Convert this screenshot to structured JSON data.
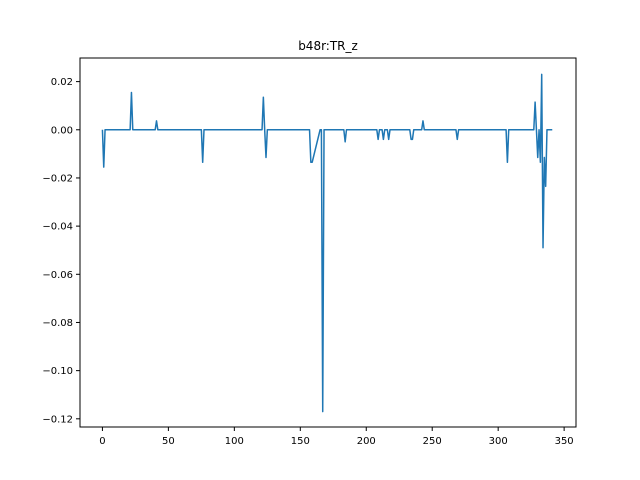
{
  "chart_data": {
    "type": "line",
    "title": "b48r:TR_z",
    "xlabel": "",
    "ylabel": "",
    "xlim": [
      -17,
      359
    ],
    "ylim": [
      -0.1234,
      0.0298
    ],
    "xticks": [
      0,
      50,
      100,
      150,
      200,
      250,
      300,
      350
    ],
    "yticks": [
      0.02,
      0.0,
      -0.02,
      -0.04,
      -0.06,
      -0.08,
      -0.1,
      -0.12
    ],
    "xtick_labels": [
      "0",
      "50",
      "100",
      "150",
      "200",
      "250",
      "300",
      "350"
    ],
    "ytick_labels": [
      "0.02",
      "0.00",
      "−0.02",
      "−0.04",
      "−0.06",
      "−0.08",
      "−0.10",
      "−0.12"
    ],
    "grid": false,
    "color": "#1f77b4",
    "series": [
      {
        "x": [
          0,
          1,
          2,
          21,
          22,
          23,
          40,
          41,
          42,
          75,
          76,
          77,
          121,
          122,
          123,
          124,
          125,
          126,
          157,
          158,
          159,
          165,
          166,
          167,
          168,
          169,
          183,
          184,
          185,
          208,
          209,
          210,
          212,
          213,
          214,
          216,
          217,
          218,
          233,
          234,
          235,
          236,
          242,
          243,
          244,
          268,
          269,
          270,
          306,
          307,
          308,
          327,
          328,
          329,
          330,
          331,
          332,
          333,
          334,
          335,
          336,
          337,
          338,
          339,
          340,
          341
        ],
        "y": [
          0,
          -0.0155,
          0,
          0,
          0.0155,
          0,
          0,
          0.0037,
          0,
          0,
          -0.0135,
          0,
          0,
          0.0135,
          0,
          -0.0115,
          0,
          0,
          0,
          -0.0135,
          -0.0135,
          0,
          0,
          -0.117,
          0,
          0,
          0,
          -0.005,
          0,
          0,
          -0.004,
          0,
          0,
          -0.004,
          0,
          0,
          -0.004,
          0,
          0,
          -0.004,
          -0.004,
          0,
          0,
          0.0037,
          0,
          0,
          -0.004,
          0,
          0,
          -0.0135,
          0,
          0,
          0.0115,
          0,
          -0.0115,
          0,
          -0.0135,
          0.023,
          -0.049,
          -0.0115,
          -0.0235,
          0,
          0,
          0,
          0,
          0
        ]
      }
    ]
  }
}
